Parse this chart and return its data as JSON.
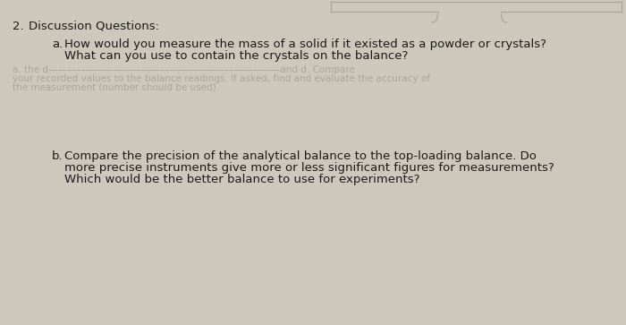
{
  "background_color": "#ccc9bc",
  "text_color": "#1a1a1a",
  "faded_color": "#a8a59a",
  "section_number": "2.",
  "section_title": "Discussion Questions:",
  "question_a_label": "a.",
  "question_a_line1": "How would you measure the mass of a solid if it existed as a powder or crystals?",
  "question_a_line2": "What can you use to contain the crystals on the balance?",
  "faded_text_line1": "a. the d                                                    and d. Compare",
  "faded_text_line2": "your recorded values to the balance readings. If asked, find and evaluate the accuracy of",
  "faded_text_line3": "the measurement (number should be used).",
  "question_b_label": "b.",
  "question_b_line1": "Compare the precision of the analytical balance to the top-loading balance. Do",
  "question_b_line2": "more precise instruments give more or less significant figures for measurements?",
  "question_b_line3": "Which would be the better balance to use for experiments?",
  "font_size_main": 9.5,
  "font_size_title": 9.5,
  "font_size_faded": 7.5,
  "top_rect_color": "#dedad0",
  "top_line_color": "#aaa89e"
}
